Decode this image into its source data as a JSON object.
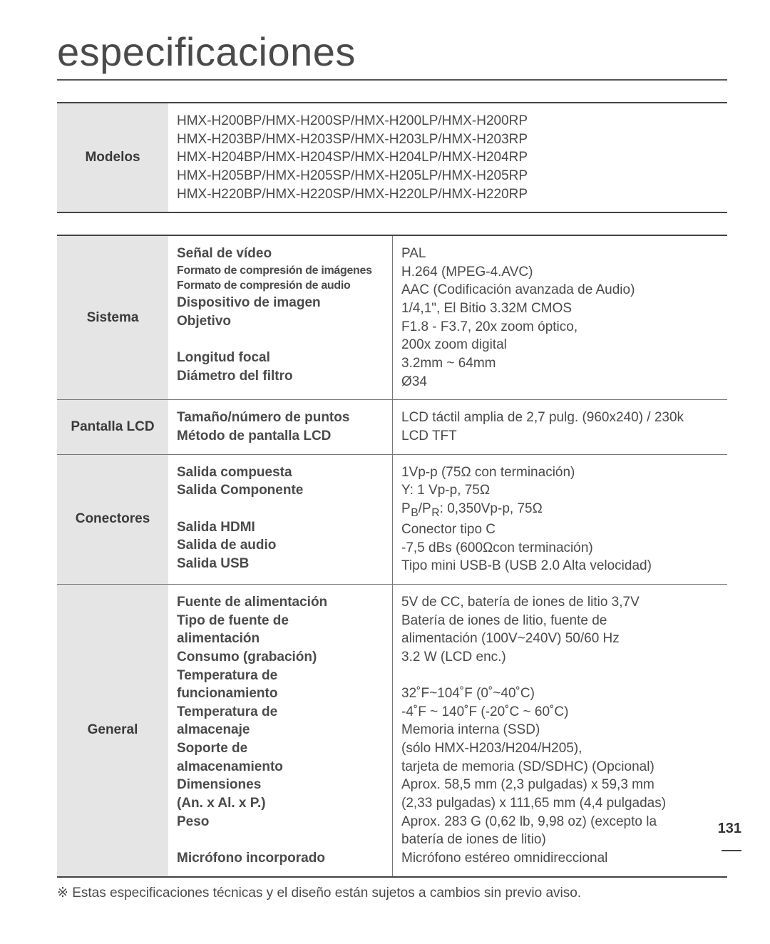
{
  "page": {
    "title": "especificaciones",
    "number": "131",
    "footnote": "※ Estas especificaciones técnicas y el diseño están sujetos a cambios sin previo aviso."
  },
  "modelos": {
    "cat": "Modelos",
    "lines": [
      "HMX-H200BP/HMX-H200SP/HMX-H200LP/HMX-H200RP",
      "HMX-H203BP/HMX-H203SP/HMX-H203LP/HMX-H203RP",
      "HMX-H204BP/HMX-H204SP/HMX-H204LP/HMX-H204RP",
      "HMX-H205BP/HMX-H205SP/HMX-H205LP/HMX-H205RP",
      "HMX-H220BP/HMX-H220SP/HMX-H220LP/HMX-H220RP"
    ]
  },
  "sistema": {
    "cat": "Sistema",
    "labels": {
      "l0": "Señal de vídeo",
      "l1": "Formato de compresión de imágenes",
      "l2": "Formato de compresión de audio",
      "l3": "Dispositivo de imagen",
      "l4": "Objetivo",
      "l4b": "",
      "l5": "Longitud focal",
      "l6": "Diámetro del filtro"
    },
    "values": {
      "v0": "PAL",
      "v1": "H.264 (MPEG-4.AVC)",
      "v2": "AAC (Codificación avanzada de Audio)",
      "v3": "1/4,1\", El Bitio 3.32M CMOS",
      "v4": "F1.8 - F3.7, 20x zoom óptico,",
      "v4b": "200x zoom digital",
      "v5": "3.2mm ~ 64mm",
      "v6": "Ø34"
    }
  },
  "lcd": {
    "cat": "Pantalla LCD",
    "labels": {
      "l0": "Tamaño/número de puntos",
      "l1": "Método de pantalla LCD"
    },
    "values": {
      "v0": "LCD táctil amplia de 2,7 pulg. (960x240) / 230k",
      "v1": "LCD TFT"
    }
  },
  "conectores": {
    "cat": "Conectores",
    "labels": {
      "l0": "Salida compuesta",
      "l1": "Salida Componente",
      "l1b": "",
      "l2": "Salida HDMI",
      "l3": "Salida de audio",
      "l4": "Salida USB"
    },
    "values": {
      "v0": "1Vp-p (75Ω con terminación)",
      "v1": "Y: 1 Vp-p, 75Ω",
      "v1b": "Pb/Pr: 0,350Vp-p, 75Ω",
      "v2": "Conector tipo C",
      "v3": "-7,5 dBs (600Ωcon terminación)",
      "v4": "Tipo mini USB-B (USB 2.0 Alta velocidad)"
    }
  },
  "general": {
    "cat": "General",
    "labels": {
      "l0": "Fuente de alimentación",
      "l1a": "Tipo de fuente de",
      "l1b": "alimentación",
      "l2": "Consumo (grabación)",
      "l3a": "Temperatura de",
      "l3b": "funcionamiento",
      "l4a": "Temperatura de",
      "l4b": "almacenaje",
      "l5a": "Soporte de",
      "l5b": "almacenamiento",
      "l6a": "Dimensiones",
      "l6b": "(An. x Al. x P.)",
      "l7": "Peso",
      "l7b": "",
      "l8": "Micrófono incorporado"
    },
    "values": {
      "v0": "5V de CC, batería de iones de litio 3,7V",
      "v1a": "Batería de iones de litio, fuente de",
      "v1b": "alimentación (100V~240V) 50/60 Hz",
      "v2": "3.2 W (LCD enc.)",
      "v3a": "",
      "v3b": "32˚F~104˚F (0˚~40˚C)",
      "v4a": "-4˚F ~ 140˚F (-20˚C ~ 60˚C)",
      "v4b": "Memoria interna (SSD)",
      "v5a": "(sólo HMX-H203/H204/H205),",
      "v5b": "tarjeta de memoria (SD/SDHC) (Opcional)",
      "v6a": "Aprox. 58,5 mm (2,3 pulgadas) x 59,3 mm",
      "v6b": "(2,33 pulgadas) x 111,65 mm (4,4 pulgadas)",
      "v7a": "Aprox. 283 G (0,62 lb, 9,98 oz) (excepto la",
      "v7b": "batería de iones de litio)",
      "v8": "Micrófono estéreo omnidireccional"
    }
  }
}
